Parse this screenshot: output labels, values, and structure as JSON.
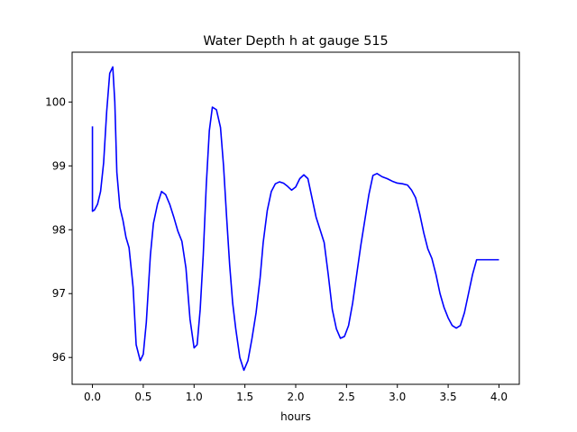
{
  "chart_data": {
    "type": "line",
    "title": "Water Depth h at gauge 515",
    "xlabel": "hours",
    "ylabel": "",
    "xlim": [
      -0.2,
      4.2
    ],
    "ylim": [
      95.58,
      100.78
    ],
    "xticks": [
      0.0,
      0.5,
      1.0,
      1.5,
      2.0,
      2.5,
      3.0,
      3.5,
      4.0
    ],
    "xtick_labels": [
      "0.0",
      "0.5",
      "1.0",
      "1.5",
      "2.0",
      "2.5",
      "3.0",
      "3.5",
      "4.0"
    ],
    "yticks": [
      96,
      97,
      98,
      99,
      100
    ],
    "ytick_labels": [
      "96",
      "97",
      "98",
      "99",
      "100"
    ],
    "grid": false,
    "series": [
      {
        "name": "h",
        "color": "#0000ff",
        "x": [
          0.0,
          0.0,
          0.02,
          0.05,
          0.08,
          0.11,
          0.14,
          0.17,
          0.2,
          0.22,
          0.24,
          0.27,
          0.3,
          0.33,
          0.36,
          0.4,
          0.43,
          0.47,
          0.5,
          0.53,
          0.57,
          0.6,
          0.64,
          0.68,
          0.72,
          0.76,
          0.8,
          0.84,
          0.88,
          0.92,
          0.96,
          1.0,
          1.03,
          1.06,
          1.09,
          1.12,
          1.15,
          1.18,
          1.22,
          1.26,
          1.29,
          1.32,
          1.35,
          1.38,
          1.41,
          1.45,
          1.49,
          1.53,
          1.57,
          1.61,
          1.65,
          1.68,
          1.72,
          1.76,
          1.8,
          1.84,
          1.88,
          1.92,
          1.96,
          2.0,
          2.04,
          2.08,
          2.12,
          2.16,
          2.2,
          2.24,
          2.28,
          2.32,
          2.36,
          2.4,
          2.44,
          2.48,
          2.52,
          2.56,
          2.6,
          2.64,
          2.68,
          2.72,
          2.76,
          2.8,
          2.85,
          2.9,
          2.95,
          3.0,
          3.05,
          3.1,
          3.14,
          3.18,
          3.22,
          3.26,
          3.3,
          3.34,
          3.38,
          3.42,
          3.46,
          3.5,
          3.54,
          3.58,
          3.62,
          3.66,
          3.7,
          3.74,
          3.78,
          3.82,
          3.86,
          3.9,
          3.94,
          3.97,
          4.0
        ],
        "y": [
          99.62,
          98.29,
          98.31,
          98.4,
          98.6,
          99.05,
          99.85,
          100.45,
          100.55,
          100.0,
          98.9,
          98.35,
          98.15,
          97.88,
          97.72,
          97.1,
          96.2,
          95.95,
          96.05,
          96.55,
          97.6,
          98.1,
          98.4,
          98.6,
          98.55,
          98.4,
          98.2,
          97.98,
          97.82,
          97.4,
          96.6,
          96.15,
          96.2,
          96.75,
          97.6,
          98.7,
          99.55,
          99.92,
          99.88,
          99.6,
          99.0,
          98.2,
          97.45,
          96.85,
          96.45,
          96.0,
          95.8,
          95.95,
          96.3,
          96.7,
          97.25,
          97.8,
          98.3,
          98.6,
          98.72,
          98.75,
          98.73,
          98.68,
          98.62,
          98.67,
          98.8,
          98.86,
          98.8,
          98.5,
          98.2,
          98.0,
          97.8,
          97.3,
          96.75,
          96.45,
          96.3,
          96.33,
          96.5,
          96.85,
          97.3,
          97.75,
          98.15,
          98.55,
          98.85,
          98.88,
          98.83,
          98.8,
          98.76,
          98.73,
          98.72,
          98.7,
          98.62,
          98.5,
          98.25,
          97.95,
          97.7,
          97.55,
          97.3,
          97.0,
          96.78,
          96.62,
          96.5,
          96.46,
          96.5,
          96.7,
          97.0,
          97.3,
          97.53,
          97.53,
          97.53,
          97.53,
          97.53,
          97.53,
          97.53
        ]
      }
    ]
  }
}
